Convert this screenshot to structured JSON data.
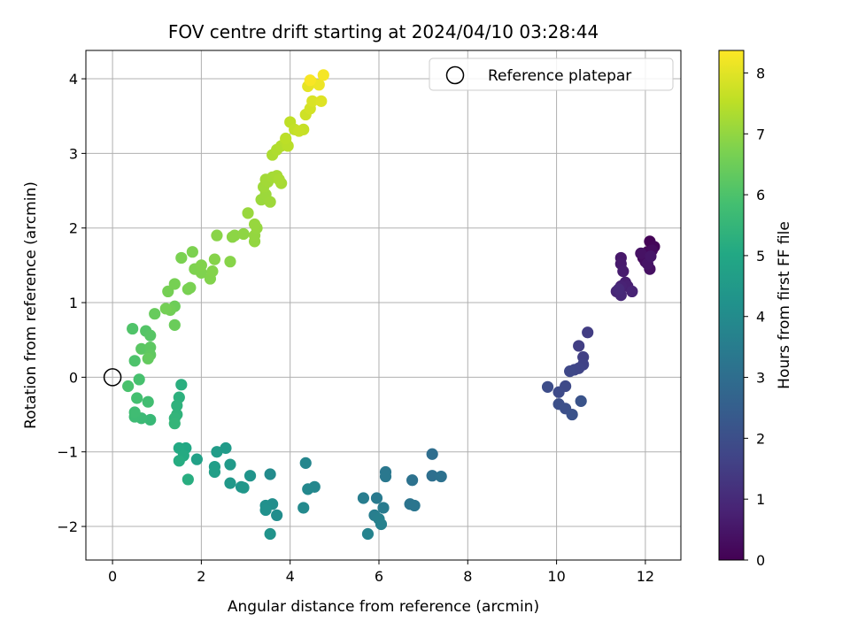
{
  "chart_data": {
    "type": "scatter",
    "title": "FOV centre drift starting at 2024/04/10 03:28:44",
    "xlabel": "Angular distance from reference (arcmin)",
    "ylabel": "Rotation from reference (arcmin)",
    "xlim": [
      -0.6,
      12.8
    ],
    "ylim": [
      -2.45,
      4.38
    ],
    "x_ticks": [
      0,
      2,
      4,
      6,
      8,
      10,
      12
    ],
    "y_ticks": [
      -2,
      -1,
      0,
      1,
      2,
      3,
      4
    ],
    "grid": true,
    "legend": {
      "placement": "top-right",
      "label": "Reference platepar"
    },
    "reference_point": {
      "x": 0,
      "y": 0
    },
    "colorbar": {
      "label": "Hours from first FF file",
      "colormap": "viridis",
      "range": [
        0,
        8.37
      ],
      "ticks": [
        0,
        1,
        2,
        3,
        4,
        5,
        6,
        7,
        8
      ]
    },
    "points": [
      [
        12.1,
        1.82,
        0.05
      ],
      [
        12.2,
        1.75,
        0.1
      ],
      [
        12.05,
        1.68,
        0.15
      ],
      [
        11.95,
        1.6,
        0.2
      ],
      [
        12.15,
        1.7,
        0.25
      ],
      [
        12.0,
        1.55,
        0.3
      ],
      [
        12.1,
        1.45,
        0.35
      ],
      [
        11.9,
        1.66,
        0.4
      ],
      [
        12.05,
        1.52,
        0.45
      ],
      [
        12.12,
        1.62,
        0.5
      ],
      [
        11.45,
        1.6,
        0.55
      ],
      [
        11.45,
        1.52,
        0.6
      ],
      [
        11.5,
        1.42,
        0.65
      ],
      [
        11.55,
        1.27,
        0.7
      ],
      [
        11.6,
        1.22,
        0.75
      ],
      [
        11.45,
        1.22,
        0.8
      ],
      [
        11.7,
        1.15,
        0.85
      ],
      [
        11.35,
        1.15,
        0.9
      ],
      [
        11.45,
        1.1,
        0.95
      ],
      [
        11.4,
        1.18,
        1.0
      ],
      [
        10.7,
        0.6,
        1.5
      ],
      [
        10.5,
        0.42,
        1.55
      ],
      [
        10.6,
        0.27,
        1.6
      ],
      [
        10.6,
        0.17,
        1.65
      ],
      [
        10.5,
        0.12,
        1.7
      ],
      [
        10.4,
        0.1,
        1.75
      ],
      [
        10.3,
        0.08,
        1.8
      ],
      [
        10.2,
        -0.12,
        1.85
      ],
      [
        10.05,
        -0.2,
        1.9
      ],
      [
        9.8,
        -0.13,
        1.95
      ],
      [
        10.05,
        -0.36,
        2.0
      ],
      [
        10.2,
        -0.42,
        2.05
      ],
      [
        10.35,
        -0.5,
        2.1
      ],
      [
        10.55,
        -0.32,
        2.15
      ],
      [
        7.2,
        -1.03,
        3.0
      ],
      [
        7.2,
        -1.32,
        3.05
      ],
      [
        7.4,
        -1.33,
        3.1
      ],
      [
        6.75,
        -1.38,
        3.15
      ],
      [
        6.7,
        -1.7,
        3.2
      ],
      [
        6.8,
        -1.72,
        3.25
      ],
      [
        6.15,
        -1.27,
        3.3
      ],
      [
        6.15,
        -1.33,
        3.35
      ],
      [
        5.95,
        -1.62,
        3.4
      ],
      [
        6.1,
        -1.75,
        3.45
      ],
      [
        5.65,
        -1.62,
        3.5
      ],
      [
        5.9,
        -1.85,
        3.55
      ],
      [
        6.0,
        -1.9,
        3.6
      ],
      [
        6.05,
        -1.97,
        3.65
      ],
      [
        5.75,
        -2.1,
        3.7
      ],
      [
        4.35,
        -1.15,
        3.8
      ],
      [
        4.55,
        -1.47,
        3.85
      ],
      [
        4.4,
        -1.5,
        3.9
      ],
      [
        4.3,
        -1.75,
        3.95
      ],
      [
        3.55,
        -1.3,
        4.0
      ],
      [
        3.7,
        -1.85,
        4.05
      ],
      [
        3.6,
        -1.7,
        4.1
      ],
      [
        3.45,
        -1.72,
        4.15
      ],
      [
        3.45,
        -1.78,
        4.2
      ],
      [
        3.55,
        -2.1,
        4.25
      ],
      [
        3.1,
        -1.32,
        4.3
      ],
      [
        2.9,
        -1.47,
        4.35
      ],
      [
        2.95,
        -1.48,
        4.4
      ],
      [
        2.65,
        -1.42,
        4.45
      ],
      [
        2.65,
        -1.17,
        4.5
      ],
      [
        2.55,
        -0.95,
        4.55
      ],
      [
        2.35,
        -1.0,
        4.6
      ],
      [
        2.3,
        -1.2,
        4.65
      ],
      [
        2.3,
        -1.27,
        4.7
      ],
      [
        1.9,
        -1.1,
        4.75
      ],
      [
        1.65,
        -0.95,
        5.0
      ],
      [
        1.5,
        -0.95,
        5.05
      ],
      [
        1.6,
        -1.05,
        5.1
      ],
      [
        1.5,
        -1.12,
        5.15
      ],
      [
        1.7,
        -1.37,
        5.2
      ],
      [
        1.55,
        -0.1,
        5.25
      ],
      [
        1.5,
        -0.27,
        5.3
      ],
      [
        1.45,
        -0.38,
        5.35
      ],
      [
        1.45,
        -0.5,
        5.4
      ],
      [
        1.4,
        -0.55,
        5.45
      ],
      [
        1.4,
        -0.62,
        5.5
      ],
      [
        0.85,
        -0.57,
        5.6
      ],
      [
        0.65,
        -0.55,
        5.65
      ],
      [
        0.5,
        -0.53,
        5.7
      ],
      [
        0.5,
        -0.47,
        5.75
      ],
      [
        0.8,
        -0.33,
        5.8
      ],
      [
        0.55,
        -0.28,
        5.85
      ],
      [
        0.6,
        -0.03,
        5.9
      ],
      [
        0.35,
        -0.12,
        5.95
      ],
      [
        0.5,
        0.22,
        6.0
      ],
      [
        0.45,
        0.65,
        6.05
      ],
      [
        0.75,
        0.62,
        6.1
      ],
      [
        0.85,
        0.56,
        6.15
      ],
      [
        0.65,
        0.38,
        6.2
      ],
      [
        0.85,
        0.4,
        6.25
      ],
      [
        0.85,
        0.3,
        6.3
      ],
      [
        0.8,
        0.25,
        6.35
      ],
      [
        0.95,
        0.85,
        6.4
      ],
      [
        1.4,
        0.7,
        6.45
      ],
      [
        1.4,
        0.95,
        6.5
      ],
      [
        1.3,
        0.9,
        6.55
      ],
      [
        1.2,
        0.92,
        6.6
      ],
      [
        1.25,
        1.15,
        6.62
      ],
      [
        1.4,
        1.25,
        6.64
      ],
      [
        1.7,
        1.18,
        6.66
      ],
      [
        1.75,
        1.2,
        6.68
      ],
      [
        1.55,
        1.6,
        6.7
      ],
      [
        1.8,
        1.68,
        6.72
      ],
      [
        1.85,
        1.45,
        6.74
      ],
      [
        2.0,
        1.4,
        6.76
      ],
      [
        2.0,
        1.5,
        6.78
      ],
      [
        2.2,
        1.32,
        6.8
      ],
      [
        2.25,
        1.42,
        6.82
      ],
      [
        2.3,
        1.58,
        6.84
      ],
      [
        2.65,
        1.55,
        6.86
      ],
      [
        2.35,
        1.9,
        6.88
      ],
      [
        2.7,
        1.88,
        6.9
      ],
      [
        2.75,
        1.9,
        6.92
      ],
      [
        2.95,
        1.92,
        6.94
      ],
      [
        3.2,
        1.82,
        7.0
      ],
      [
        3.2,
        1.9,
        7.02
      ],
      [
        3.25,
        2.0,
        7.04
      ],
      [
        3.2,
        2.05,
        7.06
      ],
      [
        3.05,
        2.2,
        7.08
      ],
      [
        3.35,
        2.38,
        7.1
      ],
      [
        3.45,
        2.45,
        7.12
      ],
      [
        3.55,
        2.35,
        7.14
      ],
      [
        3.4,
        2.55,
        7.16
      ],
      [
        3.5,
        2.62,
        7.18
      ],
      [
        3.45,
        2.65,
        7.2
      ],
      [
        3.6,
        2.68,
        7.22
      ],
      [
        3.7,
        2.7,
        7.24
      ],
      [
        3.8,
        2.6,
        7.26
      ],
      [
        3.75,
        2.65,
        7.28
      ],
      [
        3.6,
        2.98,
        7.32
      ],
      [
        3.7,
        3.05,
        7.36
      ],
      [
        3.8,
        3.1,
        7.4
      ],
      [
        3.9,
        3.15,
        7.44
      ],
      [
        3.95,
        3.1,
        7.48
      ],
      [
        3.9,
        3.2,
        7.52
      ],
      [
        4.0,
        3.42,
        7.56
      ],
      [
        4.1,
        3.32,
        7.6
      ],
      [
        4.3,
        3.32,
        7.64
      ],
      [
        4.2,
        3.3,
        7.68
      ],
      [
        4.35,
        3.52,
        7.75
      ],
      [
        4.45,
        3.6,
        7.82
      ],
      [
        4.5,
        3.7,
        7.9
      ],
      [
        4.7,
        3.7,
        7.97
      ],
      [
        4.4,
        3.9,
        8.04
      ],
      [
        4.5,
        3.95,
        8.1
      ],
      [
        4.65,
        3.92,
        8.16
      ],
      [
        4.75,
        4.05,
        8.25
      ],
      [
        4.45,
        3.98,
        8.3
      ]
    ]
  }
}
